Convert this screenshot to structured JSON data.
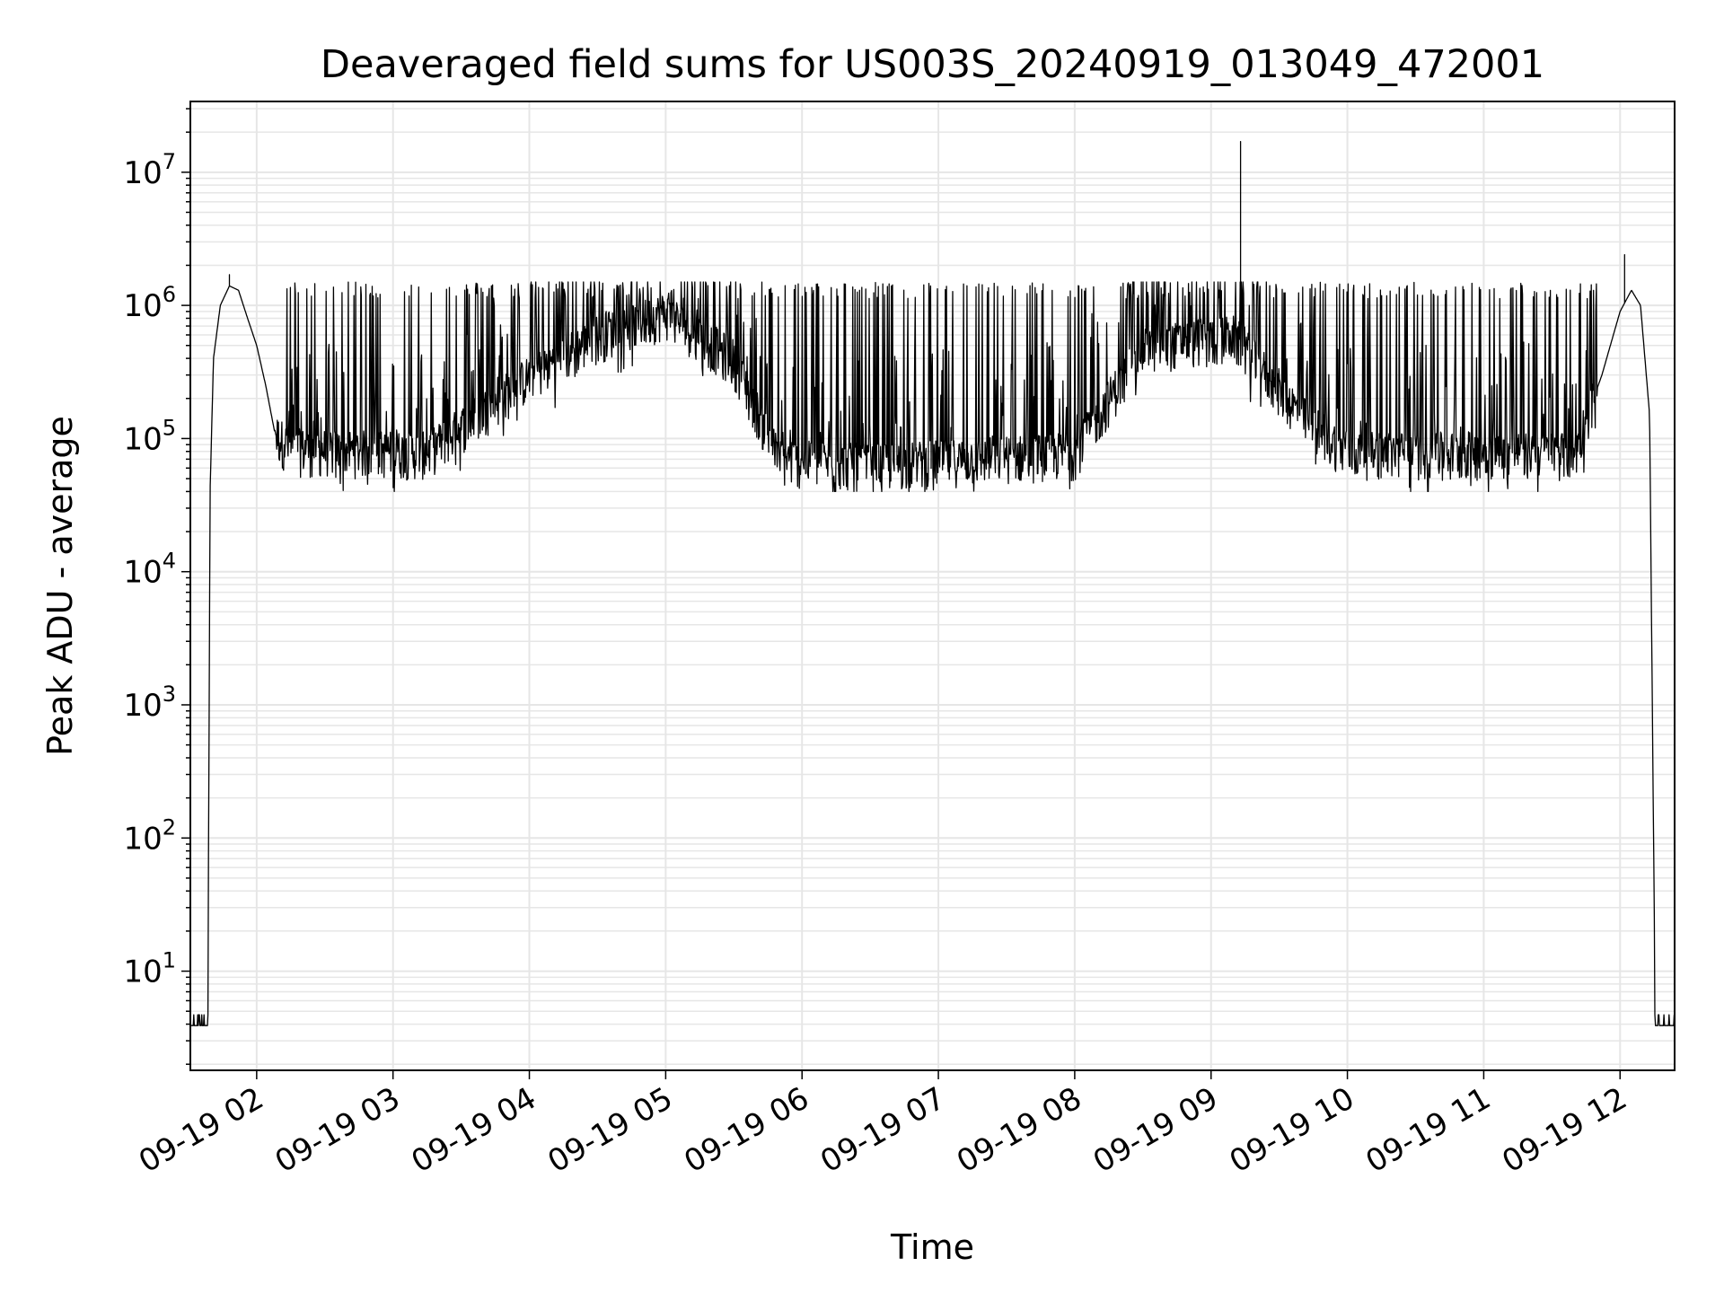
{
  "chart_data": {
    "type": "line",
    "title": "Deaveraged field sums for US003S_20240919_013049_472001",
    "xlabel": "Time",
    "ylabel": "Peak ADU - average",
    "yscale": "log",
    "ylim": [
      1.8,
      34000000.0
    ],
    "xlim": [
      "2024-09-19T01:30:49",
      "2024-09-19T12:24:00"
    ],
    "grid": true,
    "legend": "none",
    "line_color": "#000000",
    "grid_color": "#e6e6e6",
    "x_ticks": [
      {
        "t": "2024-09-19T02:00:00",
        "label": "09-19 02"
      },
      {
        "t": "2024-09-19T03:00:00",
        "label": "09-19 03"
      },
      {
        "t": "2024-09-19T04:00:00",
        "label": "09-19 04"
      },
      {
        "t": "2024-09-19T05:00:00",
        "label": "09-19 05"
      },
      {
        "t": "2024-09-19T06:00:00",
        "label": "09-19 06"
      },
      {
        "t": "2024-09-19T07:00:00",
        "label": "09-19 07"
      },
      {
        "t": "2024-09-19T08:00:00",
        "label": "09-19 08"
      },
      {
        "t": "2024-09-19T09:00:00",
        "label": "09-19 09"
      },
      {
        "t": "2024-09-19T10:00:00",
        "label": "09-19 10"
      },
      {
        "t": "2024-09-19T11:00:00",
        "label": "09-19 11"
      },
      {
        "t": "2024-09-19T12:00:00",
        "label": "09-19 12"
      }
    ],
    "y_ticks": [
      {
        "value": 10,
        "base": "10",
        "exp": "1"
      },
      {
        "value": 100,
        "base": "10",
        "exp": "2"
      },
      {
        "value": 1000,
        "base": "10",
        "exp": "3"
      },
      {
        "value": 10000,
        "base": "10",
        "exp": "4"
      },
      {
        "value": 100000,
        "base": "10",
        "exp": "5"
      },
      {
        "value": 1000000,
        "base": "10",
        "exp": "6"
      },
      {
        "value": 10000000,
        "base": "10",
        "exp": "7"
      }
    ],
    "series": [
      {
        "envelope": [
          {
            "t": "2024-09-19T01:30:49",
            "y": 4
          },
          {
            "t": "2024-09-19T01:38:30",
            "y": 4
          },
          {
            "t": "2024-09-19T01:39:30",
            "y": 40000
          },
          {
            "t": "2024-09-19T01:41:00",
            "y": 400000
          },
          {
            "t": "2024-09-19T01:44:00",
            "y": 1000000
          },
          {
            "t": "2024-09-19T01:48:00",
            "y": 1400000
          },
          {
            "t": "2024-09-19T01:52:00",
            "y": 1300000
          },
          {
            "t": "2024-09-19T01:56:00",
            "y": 800000
          },
          {
            "t": "2024-09-19T02:00:00",
            "y": 500000
          },
          {
            "t": "2024-09-19T02:04:00",
            "y": 250000
          },
          {
            "t": "2024-09-19T02:08:00",
            "y": 110000
          },
          {
            "t": "2024-09-19T02:15:00",
            "y": 85000
          },
          {
            "t": "2024-09-19T03:15:00",
            "y": 80000
          },
          {
            "t": "2024-09-19T04:00:00",
            "y": 300000
          },
          {
            "t": "2024-09-19T04:30:00",
            "y": 600000
          },
          {
            "t": "2024-09-19T05:00:00",
            "y": 900000
          },
          {
            "t": "2024-09-19T05:30:00",
            "y": 400000
          },
          {
            "t": "2024-09-19T05:50:00",
            "y": 70000
          },
          {
            "t": "2024-09-19T06:30:00",
            "y": 65000
          },
          {
            "t": "2024-09-19T08:00:00",
            "y": 80000
          },
          {
            "t": "2024-09-19T08:30:00",
            "y": 500000
          },
          {
            "t": "2024-09-19T09:10:00",
            "y": 600000
          },
          {
            "t": "2024-09-19T09:40:00",
            "y": 150000
          },
          {
            "t": "2024-09-19T10:00:00",
            "y": 80000
          },
          {
            "t": "2024-09-19T11:40:00",
            "y": 80000
          },
          {
            "t": "2024-09-19T11:52:00",
            "y": 300000
          },
          {
            "t": "2024-09-19T12:00:00",
            "y": 900000
          },
          {
            "t": "2024-09-19T12:05:00",
            "y": 1300000
          },
          {
            "t": "2024-09-19T12:09:00",
            "y": 1000000
          },
          {
            "t": "2024-09-19T12:13:00",
            "y": 150000
          },
          {
            "t": "2024-09-19T12:15:30",
            "y": 4
          },
          {
            "t": "2024-09-19T12:24:00",
            "y": 4
          }
        ],
        "noise_band_start": "2024-09-19T02:08:00",
        "noise_band_end": "2024-09-19T11:50:00",
        "noise_low": 40000,
        "noise_high": 1500000,
        "spikes": [
          {
            "t": "2024-09-19T09:13:00",
            "y": 17000000
          },
          {
            "t": "2024-09-19T12:02:00",
            "y": 2400000
          },
          {
            "t": "2024-09-19T01:48:00",
            "y": 1700000
          }
        ]
      }
    ]
  }
}
